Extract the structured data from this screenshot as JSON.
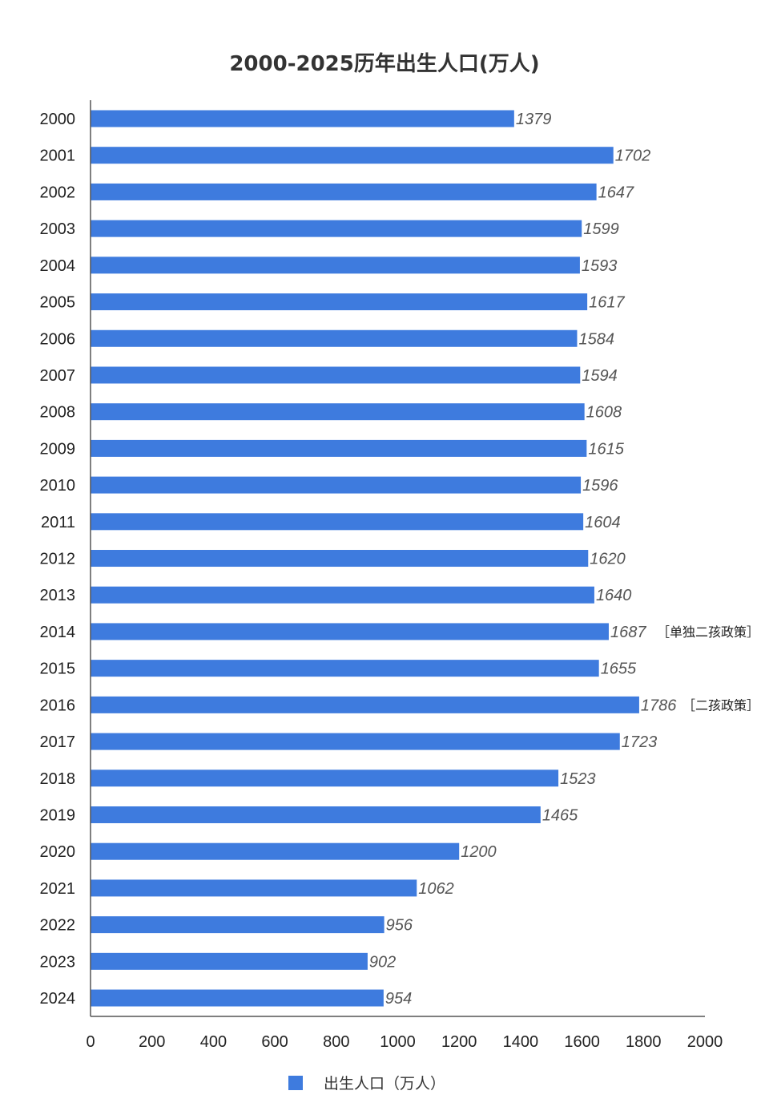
{
  "chart_data": {
    "type": "bar",
    "orientation": "horizontal",
    "title": "2000-2025历年出生人口(万人)",
    "categories": [
      "2000",
      "2001",
      "2002",
      "2003",
      "2004",
      "2005",
      "2006",
      "2007",
      "2008",
      "2009",
      "2010",
      "2011",
      "2012",
      "2013",
      "2014",
      "2015",
      "2016",
      "2017",
      "2018",
      "2019",
      "2020",
      "2021",
      "2022",
      "2023",
      "2024"
    ],
    "values": [
      1379,
      1702,
      1647,
      1599,
      1593,
      1617,
      1584,
      1594,
      1608,
      1615,
      1596,
      1604,
      1620,
      1640,
      1687,
      1655,
      1786,
      1723,
      1523,
      1465,
      1200,
      1062,
      956,
      902,
      954
    ],
    "xlim": [
      0,
      2000
    ],
    "xticks": [
      0,
      200,
      400,
      600,
      800,
      1000,
      1200,
      1400,
      1600,
      1800,
      2000
    ],
    "series_name": "出生人口（万人）",
    "bar_color": "#3e7bde",
    "annotations": [
      {
        "category": "2014",
        "text": "［单独二孩政策］"
      },
      {
        "category": "2016",
        "text": "［二孩政策］"
      }
    ],
    "legend_position": "bottom"
  }
}
